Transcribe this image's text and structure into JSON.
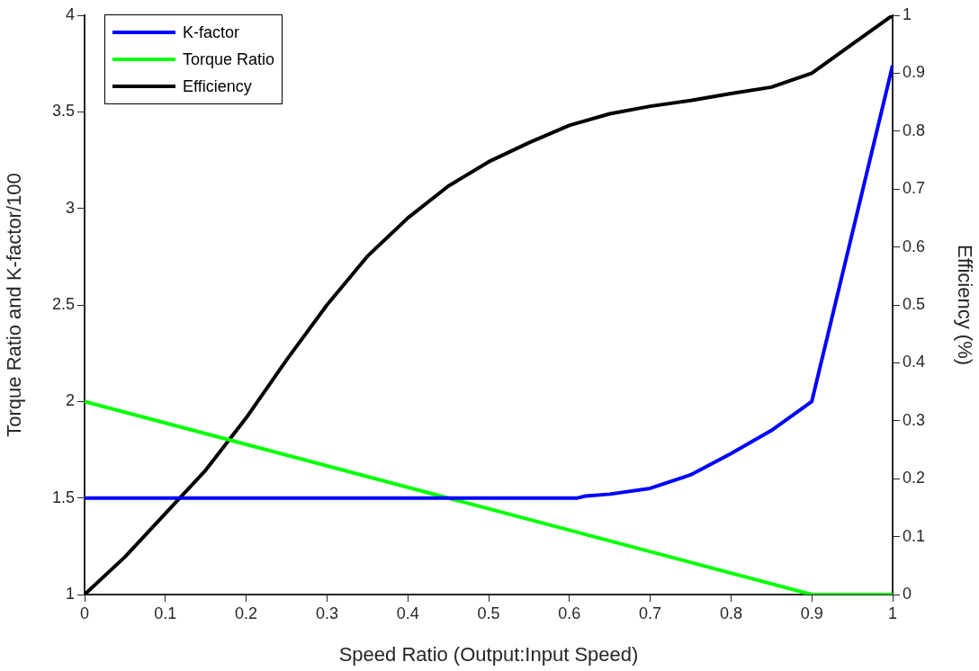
{
  "chart_data": {
    "type": "line",
    "xlabel": "Speed Ratio (Output:Input Speed)",
    "ylabel": "Torque Ratio and K-factor/100",
    "y2label": "Efficiency (%)",
    "xlim": [
      0,
      1
    ],
    "xticks": [
      0,
      0.1,
      0.2,
      0.3,
      0.4,
      0.5,
      0.6,
      0.7,
      0.8,
      0.9,
      1
    ],
    "ylim": [
      1,
      4
    ],
    "yticks": [
      1,
      1.5,
      2,
      2.5,
      3,
      3.5,
      4
    ],
    "y2lim": [
      0,
      1
    ],
    "y2ticks": [
      0,
      0.1,
      0.2,
      0.3,
      0.4,
      0.5,
      0.6,
      0.7,
      0.8,
      0.9,
      1
    ],
    "grid": false,
    "legend": "top left",
    "marker": "none",
    "line_style": "solid",
    "series": [
      {
        "name": "K-factor",
        "color": "#0000ff",
        "x": [
          0,
          0.1,
          0.2,
          0.3,
          0.4,
          0.5,
          0.61,
          0.62,
          0.65,
          0.7,
          0.75,
          0.8,
          0.85,
          0.9,
          1
        ],
        "values": [
          1.5,
          1.5,
          1.5,
          1.5,
          1.5,
          1.5,
          1.5,
          1.51,
          1.52,
          1.55,
          1.62,
          1.73,
          1.85,
          2,
          3.74
        ]
      },
      {
        "name": "Torque Ratio",
        "color": "#00ff00",
        "x": [
          0,
          0.9,
          1
        ],
        "values": [
          2,
          1,
          1
        ]
      },
      {
        "name": "Efficiency",
        "color": "#000000",
        "axis": "y2",
        "x": [
          0,
          0.05,
          0.1,
          0.15,
          0.2,
          0.25,
          0.3,
          0.35,
          0.4,
          0.45,
          0.5,
          0.55,
          0.6,
          0.65,
          0.7,
          0.75,
          0.8,
          0.85,
          0.9,
          0.95,
          1
        ],
        "values": [
          0,
          0.065,
          0.14,
          0.215,
          0.305,
          0.405,
          0.5,
          0.584,
          0.65,
          0.705,
          0.747,
          0.78,
          0.81,
          0.83,
          0.843,
          0.853,
          0.865,
          0.876,
          0.9,
          0.95,
          1
        ]
      }
    ]
  }
}
